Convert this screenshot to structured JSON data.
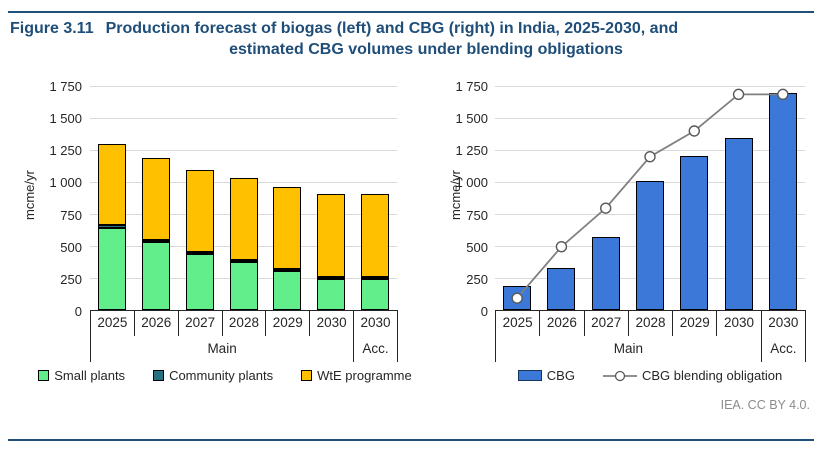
{
  "figure": {
    "label": "Figure 3.11",
    "title_line1": "Production forecast of biogas (left) and CBG (right) in India, 2025-2030, and",
    "title_line2": "estimated CBG volumes under blending obligations"
  },
  "footer": {
    "credit": "IEA. CC BY 4.0."
  },
  "colors": {
    "title": "#1F4E79",
    "rule": "#1F4E79",
    "grid": "#D9D9D9",
    "axis": "#262626",
    "small_plants": "#63EE8C",
    "community_plants": "#26707F",
    "wte_programme": "#FFC000",
    "cbg_bar": "#3B78D8",
    "obligation_line": "#808080",
    "marker_fill": "#FFFFFF",
    "marker_stroke": "#595959",
    "credit": "#8C8C8C"
  },
  "chart_data": [
    {
      "type": "bar",
      "stacked": true,
      "ylabel": "mcme/yr",
      "ylim": [
        0,
        1750
      ],
      "grid": true,
      "legend_position": "bottom",
      "yticks": [
        {
          "value": 0,
          "label": "0"
        },
        {
          "value": 250,
          "label": "250"
        },
        {
          "value": 500,
          "label": "500"
        },
        {
          "value": 750,
          "label": "750"
        },
        {
          "value": 1000,
          "label": "1 000"
        },
        {
          "value": 1250,
          "label": "1 250"
        },
        {
          "value": 1500,
          "label": "1 500"
        },
        {
          "value": 1750,
          "label": "1 750"
        }
      ],
      "categories": [
        "2025",
        "2026",
        "2027",
        "2028",
        "2029",
        "2030",
        "2030"
      ],
      "group_labels": [
        {
          "label": "Main",
          "span": 6
        },
        {
          "label": "Acc.",
          "span": 1
        }
      ],
      "series": [
        {
          "name": "Small plants",
          "kind": "bar",
          "color_key": "small_plants",
          "values": [
            640,
            530,
            435,
            370,
            300,
            240,
            240
          ]
        },
        {
          "name": "Community plants",
          "kind": "bar",
          "color_key": "community_plants",
          "values": [
            20,
            15,
            15,
            15,
            15,
            15,
            15
          ]
        },
        {
          "name": "WtE programme",
          "kind": "bar",
          "color_key": "wte_programme",
          "values": [
            630,
            635,
            640,
            645,
            645,
            650,
            650
          ]
        }
      ]
    },
    {
      "type": "bar+line",
      "stacked": false,
      "ylabel": "mcme/yr",
      "ylim": [
        0,
        1750
      ],
      "grid": true,
      "legend_position": "bottom",
      "yticks": [
        {
          "value": 0,
          "label": "0"
        },
        {
          "value": 250,
          "label": "250"
        },
        {
          "value": 500,
          "label": "500"
        },
        {
          "value": 750,
          "label": "750"
        },
        {
          "value": 1000,
          "label": "1 000"
        },
        {
          "value": 1250,
          "label": "1 250"
        },
        {
          "value": 1500,
          "label": "1 500"
        },
        {
          "value": 1750,
          "label": "1 750"
        }
      ],
      "categories": [
        "2025",
        "2026",
        "2027",
        "2028",
        "2029",
        "2030",
        "2030"
      ],
      "group_labels": [
        {
          "label": "Main",
          "span": 6
        },
        {
          "label": "Acc.",
          "span": 1
        }
      ],
      "series": [
        {
          "name": "CBG",
          "kind": "bar",
          "color_key": "cbg_bar",
          "values": [
            185,
            330,
            570,
            1000,
            1200,
            1340,
            1685
          ]
        },
        {
          "name": "CBG blending obligation",
          "kind": "line",
          "color_key": "obligation_line",
          "values": [
            100,
            500,
            800,
            1200,
            1400,
            1685,
            1685
          ]
        }
      ]
    }
  ]
}
